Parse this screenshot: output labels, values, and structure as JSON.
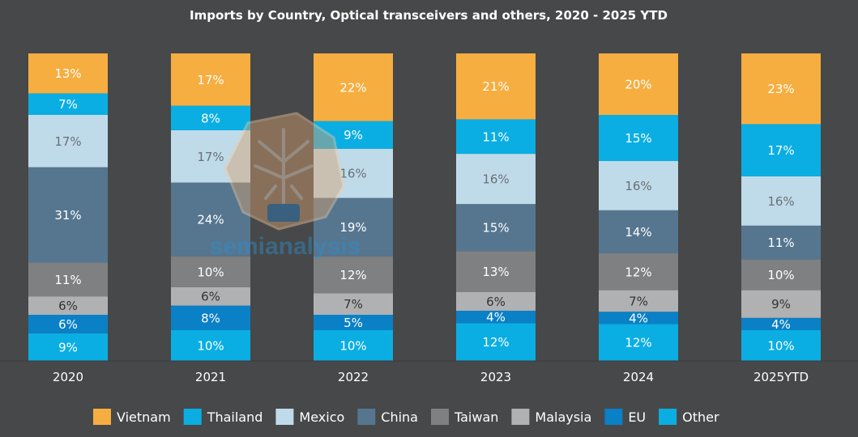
{
  "chart_data": {
    "type": "bar",
    "stacked": true,
    "percent_stacked": true,
    "title": "Imports by Country, Optical transceivers and others, 2020 - 2025 YTD",
    "xlabel": "",
    "ylabel": "",
    "ylim": [
      0,
      100
    ],
    "grid": false,
    "legend_position": "bottom",
    "value_suffix": "%",
    "categories": [
      "2020",
      "2021",
      "2022",
      "2023",
      "2024",
      "2025YTD"
    ],
    "series": [
      {
        "name": "Other",
        "color": "#0aaee3",
        "label_color": "#ffffff",
        "values": [
          9,
          10,
          10,
          12,
          12,
          10
        ]
      },
      {
        "name": "EU",
        "color": "#0a80c6",
        "label_color": "#ffffff",
        "values": [
          6,
          8,
          5,
          4,
          4,
          4
        ]
      },
      {
        "name": "Malaysia",
        "color": "#b0b1b2",
        "label_color": "#333333",
        "values": [
          6,
          6,
          7,
          6,
          7,
          9
        ]
      },
      {
        "name": "Taiwan",
        "color": "#7e8082",
        "label_color": "#ffffff",
        "values": [
          11,
          10,
          12,
          13,
          12,
          10
        ]
      },
      {
        "name": "China",
        "color": "#56768f",
        "label_color": "#ffffff",
        "values": [
          31,
          24,
          19,
          15,
          14,
          11
        ]
      },
      {
        "name": "Mexico",
        "color": "#bfdbea",
        "label_color": "#6b7075",
        "values": [
          17,
          17,
          16,
          16,
          16,
          16
        ]
      },
      {
        "name": "Thailand",
        "color": "#0aaee3",
        "label_color": "#ffffff",
        "values": [
          7,
          8,
          9,
          11,
          15,
          17
        ]
      },
      {
        "name": "Vietnam",
        "color": "#f6ae40",
        "label_color": "#ffffff",
        "values": [
          13,
          17,
          22,
          21,
          20,
          23
        ]
      }
    ],
    "legend_order": [
      "Vietnam",
      "Thailand",
      "Mexico",
      "China",
      "Taiwan",
      "Malaysia",
      "EU",
      "Other"
    ]
  },
  "watermark": {
    "text": "semianalysis",
    "icon": "lightbulb-circuit-icon"
  }
}
